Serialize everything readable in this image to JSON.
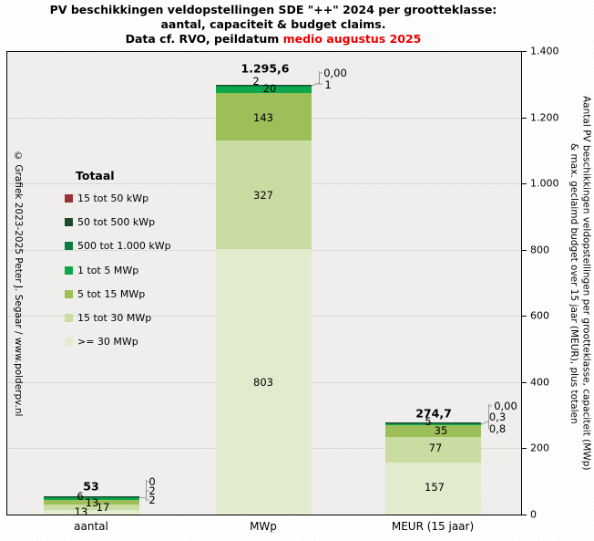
{
  "title": {
    "line1": "PV beschikkingen  veldopstellingen  SDE \"++\" 2024 per grootteklasse:",
    "line2": "aantal, capaciteit & budget claims.",
    "line3_prefix": "Data cf. RVO, peildatum ",
    "line3_highlight": "medio augustus 2025"
  },
  "copyright": "© Grafiek 2023-2025 Peter J. Segaar / www.polderpv.nl",
  "y_axis": {
    "title_line1": "Aantal PV beschikkingen veldopstellingen per grootteklasse, capaciteit (MWp)",
    "title_line2": "& max. geclaimd budget over 15 jaar (MEUR), plus totalen"
  },
  "chart_data": {
    "type": "bar",
    "stacked": true,
    "grid": true,
    "legend_position": "left-inside",
    "legend_title": "Totaal",
    "categories": [
      "aantal",
      "MWp",
      "MEUR (15 jaar)"
    ],
    "totals": [
      53,
      1295.6,
      274.7
    ],
    "total_labels": [
      "53",
      "1.295,6",
      "274,7"
    ],
    "ylim": [
      0,
      1400
    ],
    "yticks": [
      0,
      200,
      400,
      600,
      800,
      1000,
      1200,
      1400
    ],
    "ytick_labels": [
      "0",
      "200",
      "400",
      "600",
      "800",
      "1.000",
      "1.200",
      "1.400"
    ],
    "series": [
      {
        "name": "15 tot 50 kWp",
        "color": "#993333",
        "values": [
          0,
          0.0,
          0.0
        ],
        "labels": [
          "0",
          "0,00",
          "0,00"
        ]
      },
      {
        "name": "50 tot 500 kWp",
        "color": "#1d4a2d",
        "values": [
          2,
          1,
          0.3
        ],
        "labels": [
          "2",
          "1",
          "0,3"
        ]
      },
      {
        "name": "500 tot 1.000 kWp",
        "color": "#0b7d3e",
        "values": [
          2,
          2,
          0.8
        ],
        "labels": [
          "2",
          "2",
          "0,8"
        ]
      },
      {
        "name": "1 tot 5 MWp",
        "color": "#0ca64d",
        "values": [
          6,
          20,
          5
        ],
        "labels": [
          "6",
          "20",
          "5"
        ]
      },
      {
        "name": "5 tot 15 MWp",
        "color": "#9cbf5a",
        "values": [
          13,
          143,
          35
        ],
        "labels": [
          "13",
          "143",
          "35"
        ]
      },
      {
        "name": "15 tot 30 MWp",
        "color": "#c9dda2",
        "values": [
          17,
          327,
          77
        ],
        "labels": [
          "17",
          "327",
          "77"
        ]
      },
      {
        "name": ">= 30 MWp",
        "color": "#e1ecce",
        "values": [
          13,
          803,
          157
        ],
        "labels": [
          "13",
          "803",
          "157"
        ]
      }
    ]
  }
}
